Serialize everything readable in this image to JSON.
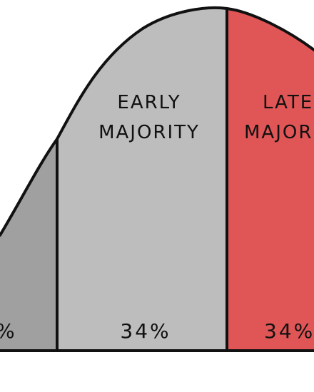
{
  "diagram": {
    "segments": [
      {
        "name": "laggards-left-partial",
        "label_lines": [],
        "percent_text": "%",
        "fill": "#a0a0a0"
      },
      {
        "name": "early-majority",
        "label_lines": [
          "EARLY",
          "MAJORITY"
        ],
        "percent_text": "34%",
        "fill": "#bdbdbd"
      },
      {
        "name": "late-majority",
        "label_lines": [
          "LATE",
          "MAJORITY"
        ],
        "percent_text": "34%",
        "fill": "#e05555"
      }
    ],
    "outline_color": "#111111",
    "background_color": "#ffffff"
  }
}
